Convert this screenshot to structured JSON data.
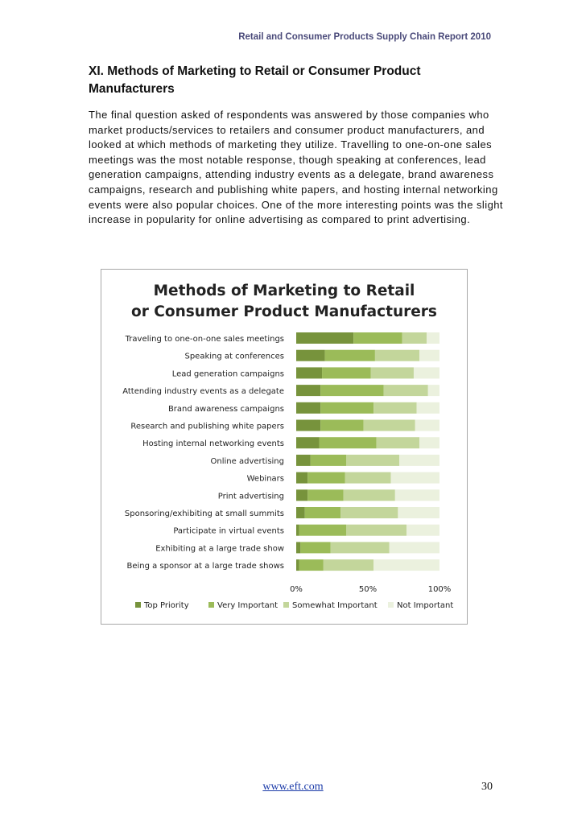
{
  "page": {
    "header": "Retail and Consumer Products Supply Chain Report 2010",
    "section_title": "XI. Methods of Marketing to Retail or Consumer Product Manufacturers",
    "body": "The final question asked of respondents was answered by those companies who market products/services to retailers and consumer product manufacturers, and looked at which methods of marketing they utilize.  Travelling to one-on-one sales meetings was the most notable response, though speaking at conferences, lead generation campaigns, attending industry events as a delegate, brand awareness campaigns, research and publishing white papers, and hosting internal networking events were also popular choices.  One of the more interesting points was the slight increase in popularity for online advertising as compared to print advertising.",
    "footer_url": "www.eft.com",
    "page_number": "30"
  },
  "colors": {
    "top_priority": "#77933c",
    "very_important": "#9bbb59",
    "somewhat_important": "#c3d69b",
    "not_important": "#ebf1de"
  },
  "chart_data": {
    "type": "bar",
    "orientation": "horizontal",
    "stacked": "percent",
    "title_lines": [
      "Methods of Marketing to Retail",
      "or Consumer Product Manufacturers"
    ],
    "categories": [
      "Traveling to one-on-one sales meetings",
      "Speaking at conferences",
      "Lead generation campaigns",
      "Attending industry events as a delegate",
      "Brand awareness campaigns",
      "Research and publishing white papers",
      "Hosting internal networking events",
      "Online advertising",
      "Webinars",
      "Print advertising",
      "Sponsoring/exhibiting at small summits",
      "Participate in virtual events",
      "Exhibiting at a large trade show",
      "Being a sponsor at a large trade shows"
    ],
    "series": [
      {
        "name": "Top Priority",
        "values": [
          40,
          20,
          18,
          17,
          17,
          17,
          16,
          10,
          8,
          8,
          6,
          2,
          3,
          2
        ]
      },
      {
        "name": "Very Important",
        "values": [
          34,
          35,
          34,
          44,
          37,
          30,
          40,
          25,
          26,
          25,
          25,
          33,
          21,
          17
        ]
      },
      {
        "name": "Somewhat Important",
        "values": [
          17,
          31,
          30,
          31,
          30,
          36,
          30,
          37,
          32,
          36,
          40,
          42,
          41,
          35
        ]
      },
      {
        "name": "Not Important",
        "values": [
          9,
          14,
          18,
          8,
          16,
          17,
          14,
          28,
          34,
          31,
          29,
          23,
          35,
          46
        ]
      }
    ],
    "xticks": [
      "0%",
      "50%",
      "100%"
    ],
    "xlim": [
      0,
      100
    ],
    "legend_position": "bottom"
  }
}
